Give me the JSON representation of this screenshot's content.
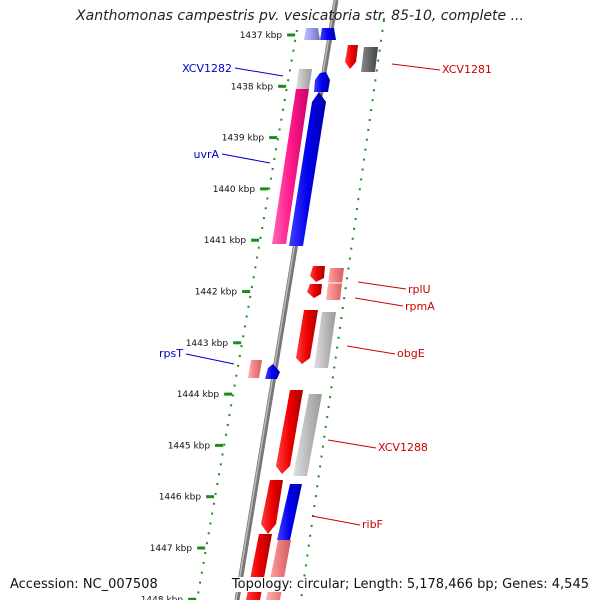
{
  "title": "Xanthomonas campestris pv. vesicatoria str. 85-10, complete ...",
  "accession": "Accession: NC_007508",
  "summary": "Topology: circular; Length: 5,178,466 bp; Genes: 4,545",
  "colors": {
    "plus_strand": "#0000ee",
    "minus_strand": "#ee0000",
    "pseudo": "#aaaaaa",
    "rna": "#ff1a8c",
    "ruler_dots": "#1a8c1a",
    "backbone": "#777777",
    "label_plus": "#0000cc",
    "label_minus": "#cc0000"
  },
  "ticks": [
    "1437 kbp",
    "1438 kbp",
    "1439 kbp",
    "1440 kbp",
    "1441 kbp",
    "1442 kbp",
    "1443 kbp",
    "1444 kbp",
    "1445 kbp",
    "1446 kbp",
    "1447 kbp",
    "1448 kbp"
  ],
  "gene_labels": [
    {
      "id": "xcv1282",
      "text": "XCV1282",
      "strand": "plus"
    },
    {
      "id": "uvra",
      "text": "uvrA",
      "strand": "plus"
    },
    {
      "id": "rpst",
      "text": "rpsT",
      "strand": "plus"
    },
    {
      "id": "xcv1281",
      "text": "XCV1281",
      "strand": "minus"
    },
    {
      "id": "rplu",
      "text": "rplU",
      "strand": "minus"
    },
    {
      "id": "rpma",
      "text": "rpmA",
      "strand": "minus"
    },
    {
      "id": "obge",
      "text": "obgE",
      "strand": "minus"
    },
    {
      "id": "xcv1288",
      "text": "XCV1288",
      "strand": "minus"
    },
    {
      "id": "ribf",
      "text": "ribF",
      "strand": "minus"
    }
  ]
}
